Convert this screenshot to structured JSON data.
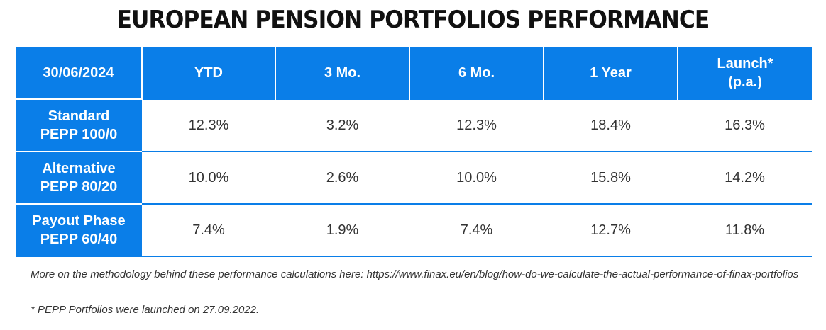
{
  "title": "EUROPEAN PENSION PORTFOLIOS PERFORMANCE",
  "chart_data": {
    "type": "table",
    "title": "EUROPEAN PENSION PORTFOLIOS PERFORMANCE",
    "corner_header": "30/06/2024",
    "columns": [
      {
        "line1": "YTD",
        "line2": ""
      },
      {
        "line1": "3 Mo.",
        "line2": ""
      },
      {
        "line1": "6 Mo.",
        "line2": ""
      },
      {
        "line1": "1 Year",
        "line2": ""
      },
      {
        "line1": "Launch*",
        "line2": "(p.a.)"
      }
    ],
    "rows": [
      {
        "name1": "Standard",
        "name2": "PEPP 100/0",
        "values": [
          "12.3%",
          "3.2%",
          "12.3%",
          "18.4%",
          "16.3%"
        ]
      },
      {
        "name1": "Alternative",
        "name2": "PEPP 80/20",
        "values": [
          "10.0%",
          "2.6%",
          "10.0%",
          "15.8%",
          "14.2%"
        ]
      },
      {
        "name1": "Payout Phase",
        "name2": "PEPP 60/40",
        "values": [
          "7.4%",
          "1.9%",
          "7.4%",
          "12.7%",
          "11.8%"
        ]
      }
    ]
  },
  "notes": {
    "methodology": "More on the methodology behind these performance calculations here: https://www.finax.eu/en/blog/how-do-we-calculate-the-actual-performance-of-finax-portfolios",
    "launch": "* PEPP Portfolios were launched on 27.09.2022."
  },
  "colors": {
    "header_blue": "#0a7ee8",
    "text": "#333333"
  }
}
